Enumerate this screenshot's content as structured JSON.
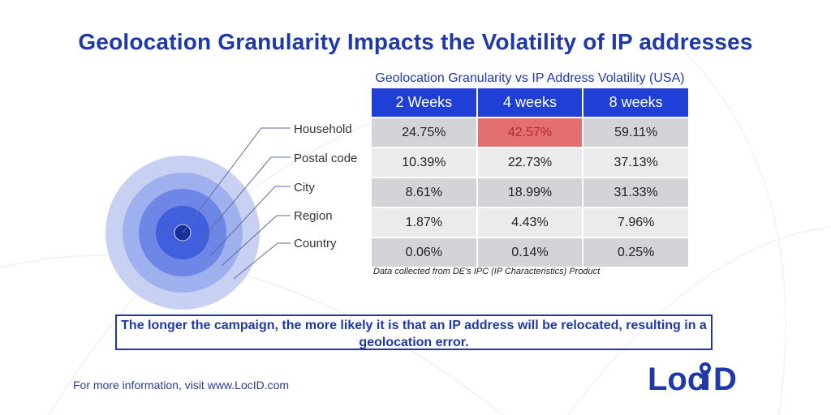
{
  "title": "Geolocation Granularity Impacts the Volatility of IP addresses",
  "table": {
    "caption": "Geolocation Granularity vs IP Address Volatility (USA)",
    "columns": [
      "2 Weeks",
      "4 weeks",
      "8 weeks"
    ],
    "rows": [
      [
        "24.75%",
        "42.57%",
        "59.11%"
      ],
      [
        "10.39%",
        "22.73%",
        "37.13%"
      ],
      [
        "8.61%",
        "18.99%",
        "31.33%"
      ],
      [
        "1.87%",
        "4.43%",
        "7.96%"
      ],
      [
        "0.06%",
        "0.14%",
        "0.25%"
      ]
    ],
    "highlight_color": "#e46f6f",
    "header_color": "#1f3fd6"
  },
  "source_note": "Data collected from DE's IPC (IP Characteristics) Product",
  "layers": [
    "Household",
    "Postal code",
    "City",
    "Region",
    "Country"
  ],
  "ring_colors": [
    "#c9d1f3",
    "#9fb0ee",
    "#6e86e6",
    "#3f5fdc",
    "#1a2f9a"
  ],
  "callout": {
    "line1": "The longer the campaign, the more likely it is that an IP address will be relocated, resulting in a",
    "line2": "geolocation error."
  },
  "footer": "For more information, visit www.LocID.com",
  "logo": {
    "text_prefix": "Loc",
    "text_suffix": "D",
    "icon": "location-pin-icon",
    "color": "#1f3aa8"
  }
}
